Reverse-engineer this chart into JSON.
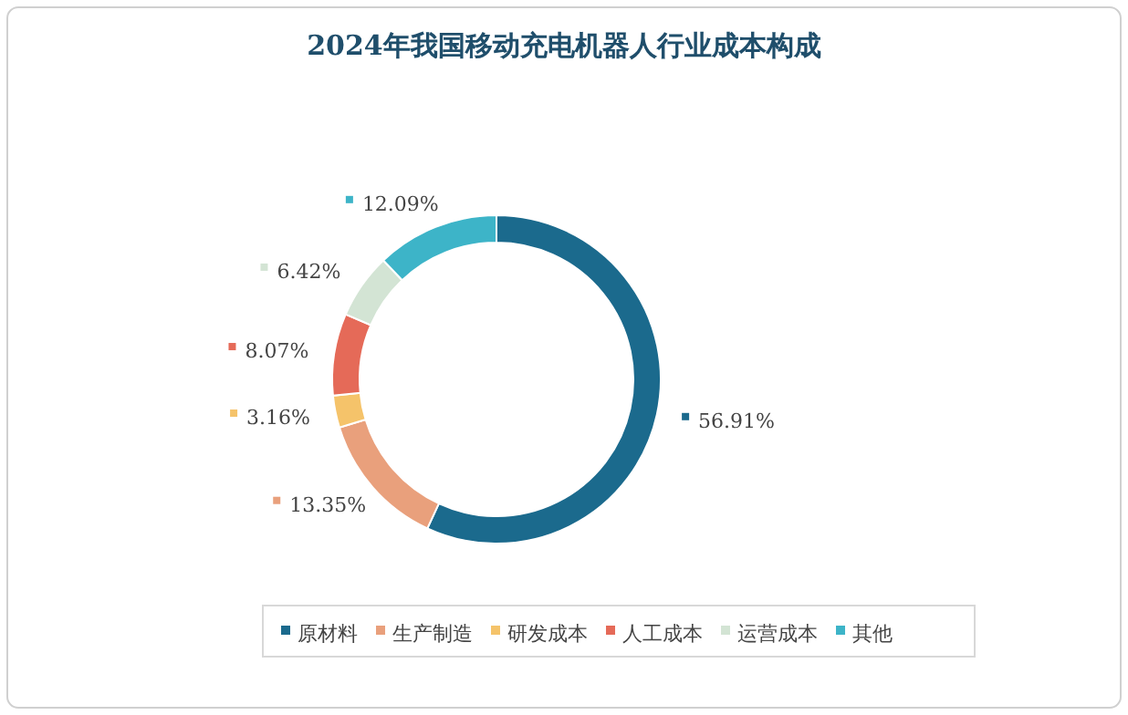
{
  "chart_data": {
    "type": "donut",
    "title": "2024年我国移动充电机器人行业成本构成",
    "categories": [
      "原材料",
      "生产制造",
      "研发成本",
      "人工成本",
      "运营成本",
      "其他"
    ],
    "values": [
      56.91,
      13.35,
      3.16,
      8.07,
      6.42,
      12.09
    ],
    "value_labels": [
      "56.91%",
      "13.35%",
      "3.16%",
      "8.07%",
      "6.42%",
      "12.09%"
    ],
    "colors": [
      "#1b6a8d",
      "#e9a07c",
      "#f5c36a",
      "#e56a58",
      "#d3e4d4",
      "#3db4c8"
    ],
    "legend": "bottom"
  }
}
